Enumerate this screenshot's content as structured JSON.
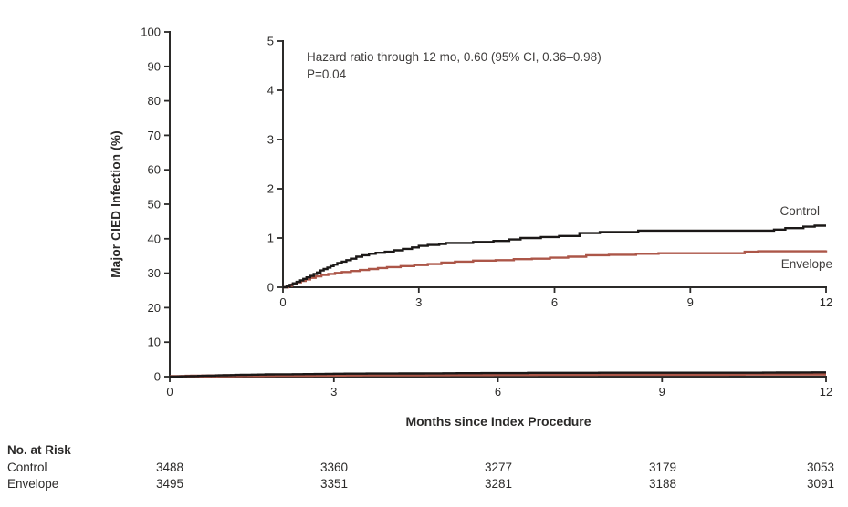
{
  "figure": {
    "colors": {
      "text": "#2b2a29",
      "annotation_text": "#3f3d3c",
      "control": "#1b1817",
      "envelope": "#ac5648"
    }
  },
  "chart_data": {
    "type": "line",
    "subtype": "kaplan-meier-cumulative-incidence-steps",
    "title": "",
    "xlabel": "Months since Index Procedure",
    "ylabel": "Major CIED Infection (%)",
    "annotation_line1": "Hazard ratio through 12 mo, 0.60 (95% CI, 0.36–0.98)",
    "annotation_line2": "P=0.04",
    "legend_position": "right-of-curves-inset",
    "grid": false,
    "main_axis": {
      "xlim": [
        0,
        12
      ],
      "ylim": [
        0,
        100
      ],
      "xticks": [
        0,
        3,
        6,
        9,
        12
      ],
      "yticks": [
        0,
        10,
        20,
        30,
        40,
        50,
        60,
        70,
        80,
        90,
        100
      ]
    },
    "inset_axis": {
      "xlim": [
        0,
        12
      ],
      "ylim": [
        0,
        5
      ],
      "xticks": [
        0,
        3,
        6,
        9,
        12
      ],
      "yticks": [
        0,
        1,
        2,
        3,
        4,
        5
      ]
    },
    "series": [
      {
        "name": "Control",
        "color": "#1b1817",
        "points": [
          [
            0,
            0
          ],
          [
            0.08,
            0.02
          ],
          [
            0.15,
            0.05
          ],
          [
            0.22,
            0.08
          ],
          [
            0.3,
            0.11
          ],
          [
            0.38,
            0.14
          ],
          [
            0.45,
            0.17
          ],
          [
            0.52,
            0.2
          ],
          [
            0.6,
            0.23
          ],
          [
            0.68,
            0.27
          ],
          [
            0.75,
            0.3
          ],
          [
            0.83,
            0.34
          ],
          [
            0.9,
            0.37
          ],
          [
            0.98,
            0.4
          ],
          [
            1.05,
            0.43
          ],
          [
            1.12,
            0.46
          ],
          [
            1.2,
            0.49
          ],
          [
            1.3,
            0.52
          ],
          [
            1.4,
            0.55
          ],
          [
            1.5,
            0.58
          ],
          [
            1.62,
            0.62
          ],
          [
            1.75,
            0.65
          ],
          [
            1.9,
            0.68
          ],
          [
            2.05,
            0.7
          ],
          [
            2.25,
            0.72
          ],
          [
            2.45,
            0.75
          ],
          [
            2.65,
            0.78
          ],
          [
            2.85,
            0.81
          ],
          [
            3.0,
            0.84
          ],
          [
            3.2,
            0.86
          ],
          [
            3.45,
            0.88
          ],
          [
            3.6,
            0.9
          ],
          [
            4.2,
            0.92
          ],
          [
            4.65,
            0.94
          ],
          [
            5.0,
            0.97
          ],
          [
            5.25,
            1.0
          ],
          [
            5.7,
            1.02
          ],
          [
            6.1,
            1.04
          ],
          [
            6.55,
            1.1
          ],
          [
            7.0,
            1.12
          ],
          [
            7.85,
            1.15
          ],
          [
            10.85,
            1.17
          ],
          [
            11.1,
            1.2
          ],
          [
            11.5,
            1.23
          ],
          [
            11.75,
            1.25
          ],
          [
            12,
            1.25
          ]
        ]
      },
      {
        "name": "Envelope",
        "color": "#ac5648",
        "points": [
          [
            0,
            0
          ],
          [
            0.12,
            0.03
          ],
          [
            0.2,
            0.06
          ],
          [
            0.3,
            0.1
          ],
          [
            0.4,
            0.13
          ],
          [
            0.5,
            0.16
          ],
          [
            0.6,
            0.19
          ],
          [
            0.72,
            0.22
          ],
          [
            0.85,
            0.25
          ],
          [
            1.0,
            0.27
          ],
          [
            1.15,
            0.29
          ],
          [
            1.3,
            0.31
          ],
          [
            1.5,
            0.33
          ],
          [
            1.7,
            0.35
          ],
          [
            1.9,
            0.37
          ],
          [
            2.1,
            0.39
          ],
          [
            2.3,
            0.41
          ],
          [
            2.6,
            0.43
          ],
          [
            2.9,
            0.45
          ],
          [
            3.2,
            0.47
          ],
          [
            3.5,
            0.5
          ],
          [
            3.8,
            0.52
          ],
          [
            4.2,
            0.54
          ],
          [
            4.7,
            0.55
          ],
          [
            5.1,
            0.57
          ],
          [
            5.5,
            0.58
          ],
          [
            5.9,
            0.6
          ],
          [
            6.3,
            0.62
          ],
          [
            6.7,
            0.65
          ],
          [
            7.2,
            0.66
          ],
          [
            7.8,
            0.68
          ],
          [
            8.3,
            0.69
          ],
          [
            10.2,
            0.72
          ],
          [
            10.5,
            0.73
          ],
          [
            12,
            0.75
          ]
        ]
      }
    ],
    "risk_table": {
      "title": "No. at Risk",
      "timepoints": [
        0,
        3,
        6,
        9,
        12
      ],
      "rows": [
        {
          "label": "Control",
          "values": [
            "3488",
            "3360",
            "3277",
            "3179",
            "3053"
          ]
        },
        {
          "label": "Envelope",
          "values": [
            "3495",
            "3351",
            "3281",
            "3188",
            "3091"
          ]
        }
      ]
    }
  }
}
